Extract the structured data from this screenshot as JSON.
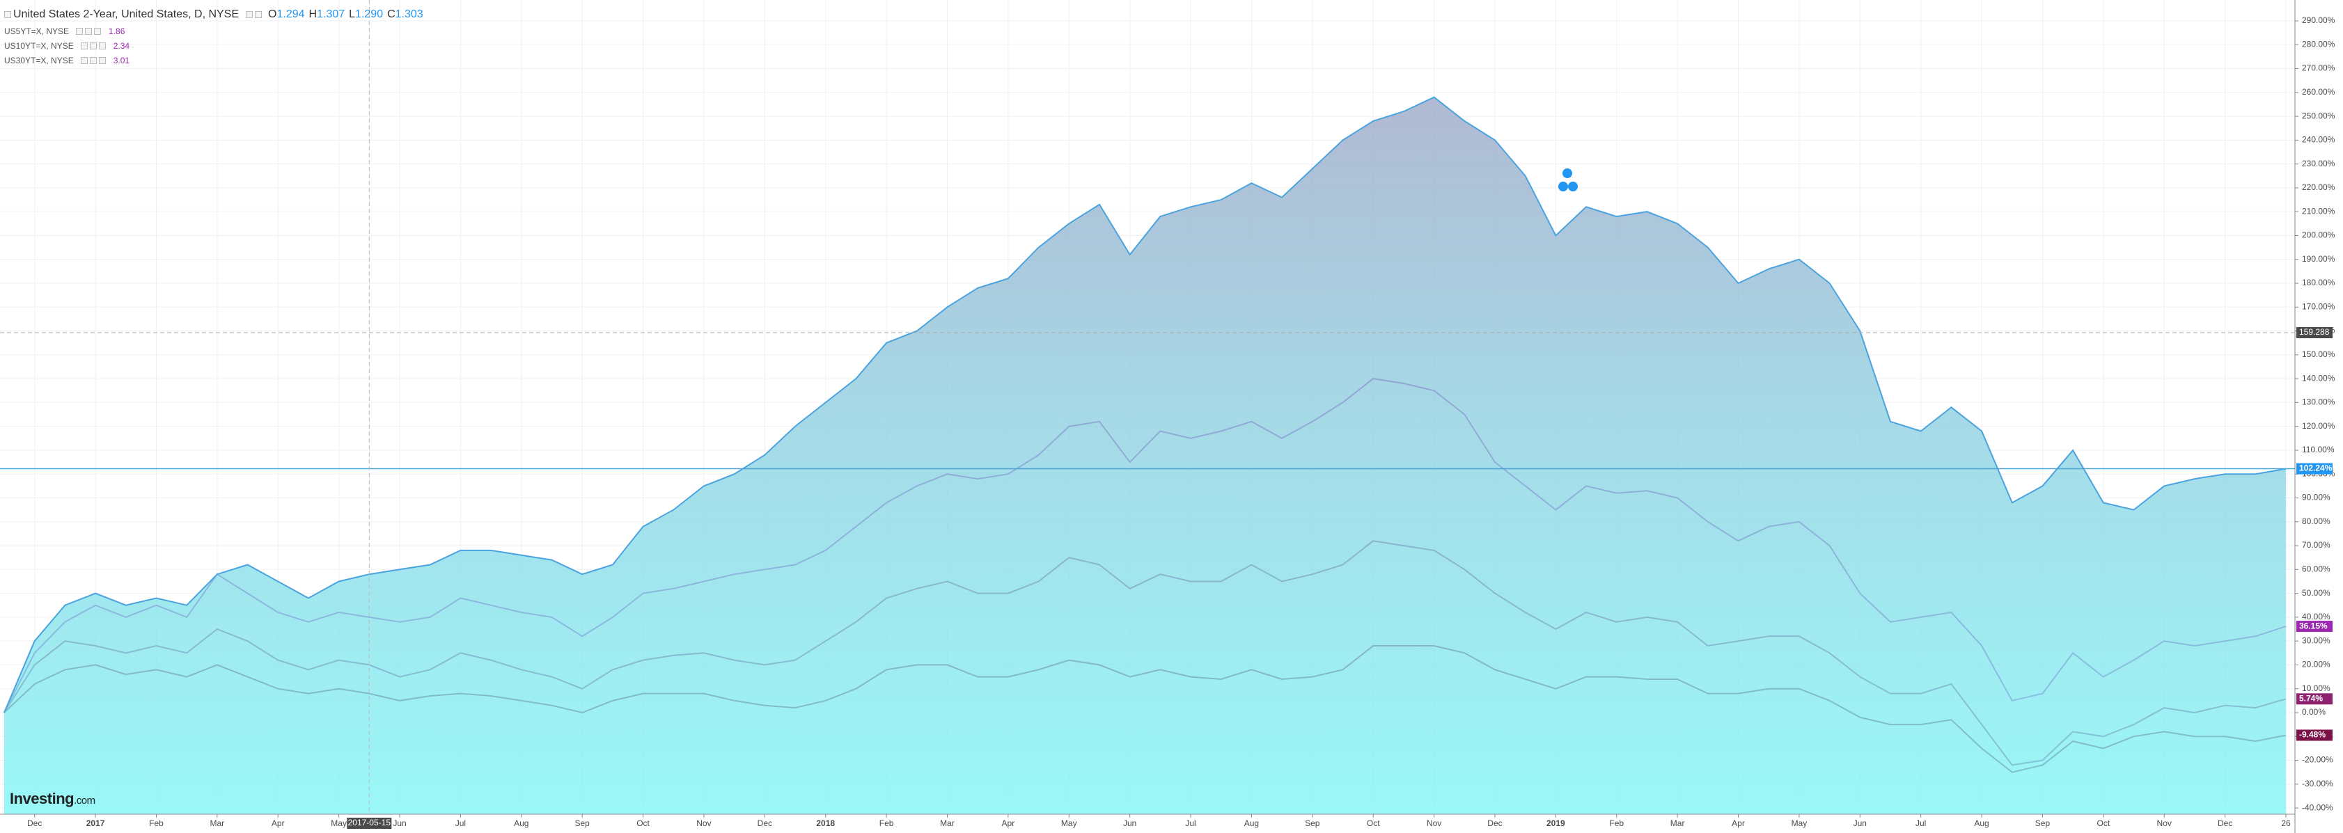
{
  "chart_data": {
    "type": "line",
    "ohlc": [
      {
        "label": "O",
        "value": "1.294"
      },
      {
        "label": "H",
        "value": "1.307"
      },
      {
        "label": "L",
        "value": "1.290"
      },
      {
        "label": "C",
        "value": "1.303"
      }
    ],
    "categories": [
      null,
      "Dec",
      null,
      "2017",
      null,
      "Feb",
      null,
      "Mar",
      null,
      "Apr",
      null,
      "May",
      null,
      "Jun",
      null,
      "Jul",
      null,
      "Aug",
      null,
      "Sep",
      null,
      "Oct",
      null,
      "Nov",
      null,
      "Dec",
      null,
      "2018",
      null,
      "Feb",
      null,
      "Mar",
      null,
      "Apr",
      null,
      "May",
      null,
      "Jun",
      null,
      "Jul",
      null,
      "Aug",
      null,
      "Sep",
      null,
      "Oct",
      null,
      "Nov",
      null,
      "Dec",
      null,
      "2019",
      null,
      "Feb",
      null,
      "Mar",
      null,
      "Apr",
      null,
      "May",
      null,
      "Jun",
      null,
      "Jul",
      null,
      "Aug",
      null,
      "Sep",
      null,
      "Oct",
      null,
      "Nov",
      null,
      "Dec",
      null,
      "26"
    ],
    "series": [
      {
        "name": "United States 2-Year, United States, D, NYSE",
        "color": "#4aa3df",
        "area": true,
        "last_label": "102.24%",
        "values": [
          0,
          30,
          45,
          50,
          45,
          48,
          45,
          58,
          62,
          55,
          48,
          55,
          58,
          60,
          62,
          68,
          68,
          66,
          64,
          58,
          62,
          78,
          85,
          95,
          100,
          108,
          120,
          130,
          140,
          155,
          160,
          170,
          178,
          182,
          195,
          205,
          213,
          192,
          208,
          212,
          215,
          222,
          216,
          228,
          240,
          248,
          252,
          258,
          248,
          240,
          225,
          200,
          212,
          208,
          210,
          205,
          195,
          180,
          186,
          190,
          180,
          160,
          122,
          118,
          128,
          118,
          88,
          95,
          110,
          88,
          85,
          95,
          98,
          100,
          100,
          102.24
        ]
      },
      {
        "name": "US5YT=X, NYSE",
        "last": 1.86,
        "color": "#9c27b0",
        "last_label": "36.15%",
        "values": [
          0,
          25,
          38,
          45,
          40,
          45,
          40,
          58,
          50,
          42,
          38,
          42,
          40,
          38,
          40,
          48,
          45,
          42,
          40,
          32,
          40,
          50,
          52,
          55,
          58,
          60,
          62,
          68,
          78,
          88,
          95,
          100,
          98,
          100,
          108,
          120,
          122,
          105,
          118,
          115,
          118,
          122,
          115,
          122,
          130,
          140,
          138,
          135,
          125,
          105,
          95,
          85,
          95,
          92,
          93,
          90,
          80,
          72,
          78,
          80,
          70,
          50,
          38,
          40,
          42,
          28,
          5,
          8,
          25,
          15,
          22,
          30,
          28,
          30,
          32,
          36.15
        ]
      },
      {
        "name": "US10YT=X, NYSE",
        "last": 2.34,
        "color": "#8e2470",
        "last_label": "5.74%",
        "values": [
          0,
          20,
          30,
          28,
          25,
          28,
          25,
          35,
          30,
          22,
          18,
          22,
          20,
          15,
          18,
          25,
          22,
          18,
          15,
          10,
          18,
          22,
          24,
          25,
          22,
          20,
          22,
          30,
          38,
          48,
          52,
          55,
          50,
          50,
          55,
          65,
          62,
          52,
          58,
          55,
          55,
          62,
          55,
          58,
          62,
          72,
          70,
          68,
          60,
          50,
          42,
          35,
          42,
          38,
          40,
          38,
          28,
          30,
          32,
          32,
          25,
          15,
          8,
          8,
          12,
          -5,
          -22,
          -20,
          -8,
          -10,
          -5,
          2,
          0,
          3,
          2,
          5.74
        ]
      },
      {
        "name": "US30YT=X, NYSE",
        "last": 3.01,
        "color": "#7b1248",
        "last_label": "-9.48%",
        "values": [
          0,
          12,
          18,
          20,
          16,
          18,
          15,
          20,
          15,
          10,
          8,
          10,
          8,
          5,
          7,
          8,
          7,
          5,
          3,
          0,
          5,
          8,
          8,
          8,
          5,
          3,
          2,
          5,
          10,
          18,
          20,
          20,
          15,
          15,
          18,
          22,
          20,
          15,
          18,
          15,
          14,
          18,
          14,
          15,
          18,
          28,
          28,
          28,
          25,
          18,
          14,
          10,
          15,
          15,
          14,
          14,
          8,
          8,
          10,
          10,
          5,
          -2,
          -5,
          -5,
          -3,
          -15,
          -25,
          -22,
          -12,
          -15,
          -10,
          -8,
          -10,
          -10,
          -12,
          -9.48
        ]
      }
    ],
    "ylim": [
      -42.6,
      298.75
    ],
    "yticks": [
      {
        "value": 290,
        "label": "290.00%"
      },
      {
        "value": 280,
        "label": "280.00%"
      },
      {
        "value": 270,
        "label": "270.00%"
      },
      {
        "value": 260,
        "label": "260.00%"
      },
      {
        "value": 250,
        "label": "250.00%"
      },
      {
        "value": 240,
        "label": "240.00%"
      },
      {
        "value": 230,
        "label": "230.00%"
      },
      {
        "value": 220,
        "label": "220.00%"
      },
      {
        "value": 210,
        "label": "210.00%"
      },
      {
        "value": 200,
        "label": "200.00%"
      },
      {
        "value": 190,
        "label": "190.00%"
      },
      {
        "value": 180,
        "label": "180.00%"
      },
      {
        "value": 170,
        "label": "170.00%"
      },
      {
        "value": 160,
        "label": "160.00%"
      },
      {
        "value": 150,
        "label": "150.00%"
      },
      {
        "value": 140,
        "label": "140.00%"
      },
      {
        "value": 130,
        "label": "130.00%"
      },
      {
        "value": 120,
        "label": "120.00%"
      },
      {
        "value": 110,
        "label": "110.00%"
      },
      {
        "value": 100,
        "label": "100.00%"
      },
      {
        "value": 90,
        "label": "90.00%"
      },
      {
        "value": 80,
        "label": "80.00%"
      },
      {
        "value": 70,
        "label": "70.00%"
      },
      {
        "value": 60,
        "label": "60.00%"
      },
      {
        "value": 50,
        "label": "50.00%"
      },
      {
        "value": 40,
        "label": "40.00%"
      },
      {
        "value": 30,
        "label": "30.00%"
      },
      {
        "value": 20,
        "label": "20.00%"
      },
      {
        "value": 10,
        "label": "10.00%"
      },
      {
        "value": 0,
        "label": "0.00%"
      },
      {
        "value": -10,
        "label": "-10.00%"
      },
      {
        "value": -20,
        "label": "-20.00%"
      },
      {
        "value": -30,
        "label": "-30.00%"
      },
      {
        "value": -40,
        "label": "-40.00%"
      }
    ],
    "grid": true,
    "crosshair": {
      "x_label": "2017-05-15",
      "y_label": 159.288
    },
    "brand": [
      "Investing",
      ".com"
    ]
  }
}
